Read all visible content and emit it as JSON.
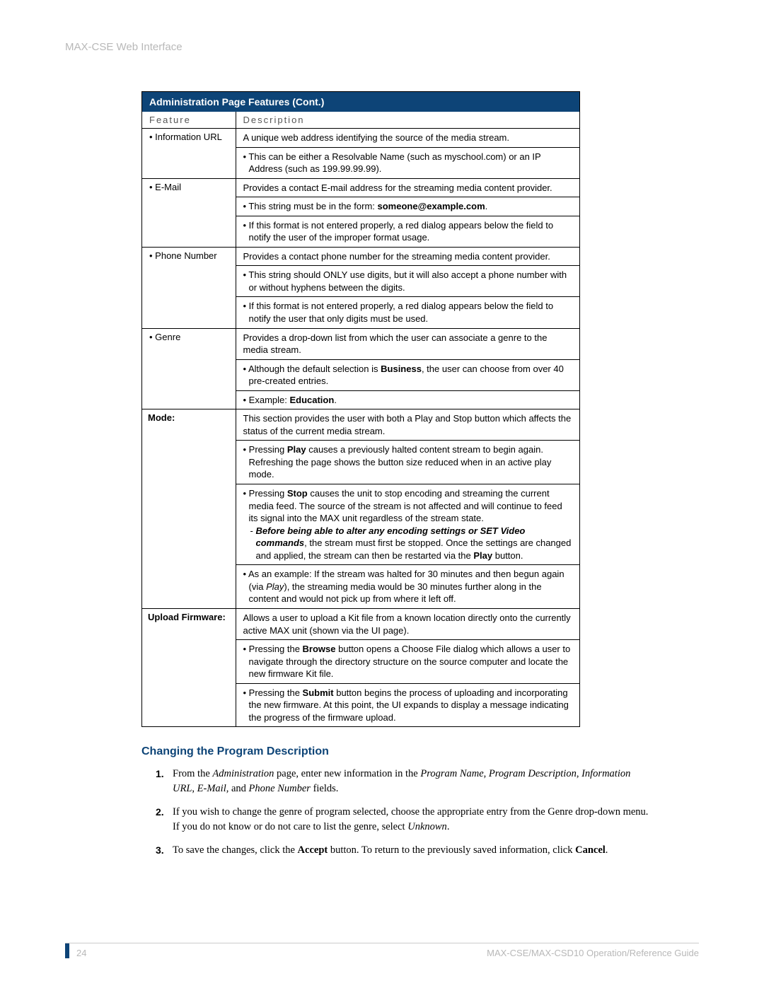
{
  "colors": {
    "header_bg": "#0d4477",
    "header_text": "#ffffff",
    "muted": "#b8b8b8",
    "border": "#000000"
  },
  "page_header": "MAX-CSE Web Interface",
  "table": {
    "title": "Administration Page Features (Cont.)",
    "col_feature": "Feature",
    "col_description": "Description",
    "rows": [
      {
        "feature": "• Information URL",
        "feature_bold": false,
        "desc_main": "A unique web address identifying the source of the media stream.",
        "subs": [
          {
            "html": "• This can be either a Resolvable Name (such as myschool.com) or an IP Address (such as 199.99.99.99)."
          }
        ]
      },
      {
        "feature": "• E-Mail",
        "feature_bold": false,
        "desc_main": "Provides a contact E-mail address for the streaming media content provider.",
        "subs": [
          {
            "html": "• This string must be in the form: <b>someone@example.com</b>."
          },
          {
            "html": "• If this format is not entered properly, a red dialog appears below the field to notify the user of the improper format usage."
          }
        ]
      },
      {
        "feature": "• Phone Number",
        "feature_bold": false,
        "desc_main": "Provides a contact phone number for the streaming media content provider.",
        "subs": [
          {
            "html": "• This string should ONLY use digits, but it will also accept a phone number with or without hyphens between the digits."
          },
          {
            "html": "• If this format is not entered properly, a red dialog appears below the field to notify the user that only digits must be used."
          }
        ]
      },
      {
        "feature": "• Genre",
        "feature_bold": false,
        "desc_main": "Provides a drop-down list from which the user can associate a genre to the media stream.",
        "subs": [
          {
            "html": "• Although the default selection is <b>Business</b>, the user can choose from over 40 pre-created entries."
          },
          {
            "html": "• Example: <b>Education</b>."
          }
        ]
      },
      {
        "feature": "Mode:",
        "feature_bold": true,
        "desc_main": "This section provides the user with both a Play and Stop button which affects the status of the current media stream.",
        "subs": [
          {
            "html": "• Pressing <b>Play</b> causes a previously halted content stream to begin again. Refreshing the page shows the button size reduced when in an active play mode."
          },
          {
            "html": "• Pressing <b>Stop</b> causes the unit to stop encoding and streaming the current media feed. The source of the stream is not affected and will continue to feed its signal into the MAX unit regardless of the stream state.",
            "extra": "- <b><i>Before being able to alter any encoding settings or SET Video commands</i></b>, the stream must first be stopped. Once the settings are changed and applied, the stream can then be restarted via the <b>Play</b> button."
          },
          {
            "html": "• As an example: If the stream was halted for 30 minutes and then begun again (via <i>Play</i>), the streaming media would be 30 minutes further along in the content and would not pick up from where it left off."
          }
        ]
      },
      {
        "feature": "Upload Firmware:",
        "feature_bold": true,
        "desc_main": "Allows a user to upload a Kit file from a known location directly onto the currently active MAX unit (shown via the UI page).",
        "subs": [
          {
            "html": "• Pressing the <b>Browse</b> button opens a Choose File dialog which allows a user to navigate through the directory structure on the source computer and locate the new firmware Kit file."
          },
          {
            "html": "• Pressing the <b>Submit</b> button begins the process of uploading and incorporating the new firmware. At this point, the UI expands to display a message indicating the progress of the firmware upload."
          }
        ]
      }
    ]
  },
  "section_heading": "Changing the Program Description",
  "steps": [
    {
      "num": "1.",
      "html": "From the <i>Administration</i> page, enter new information in the <i>Program Name</i>, <i>Program Description</i>, <i>Information URL</i>, <i>E-Mail</i>, and <i>Phone Number</i> fields."
    },
    {
      "num": "2.",
      "html": "If you wish to change the genre of program selected, choose the appropriate entry from the Genre drop-down menu. If you do not know or do not care to list the genre, select <i>Unknown</i>."
    },
    {
      "num": "3.",
      "html": "To save the changes, click the <b>Accept</b> button. To return to the previously saved information, click <b>Cancel</b>."
    }
  ],
  "footer": {
    "page_number": "24",
    "guide": "MAX-CSE/MAX-CSD10 Operation/Reference Guide"
  }
}
